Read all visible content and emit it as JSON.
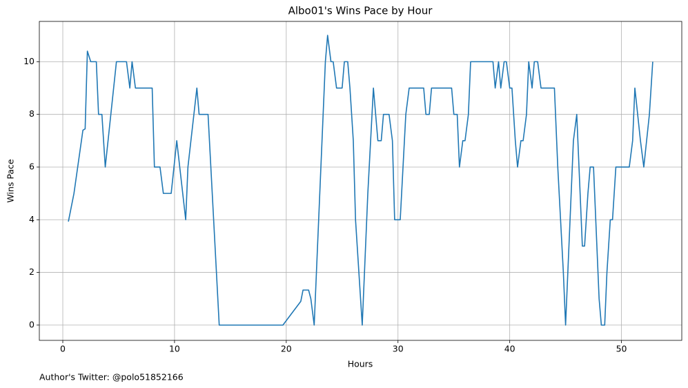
{
  "chart_data": {
    "type": "line",
    "title": "Albo01's Wins Pace by Hour",
    "x_label": "Hours",
    "y_label": "Wins Pace",
    "annotation": "Author's Twitter: @polo51852166",
    "color": "#1f77b4",
    "grid": true,
    "xlim": [
      -2.1,
      55.4
    ],
    "ylim": [
      -0.58,
      11.53
    ],
    "xticks": [
      0,
      10,
      20,
      30,
      40,
      50
    ],
    "yticks": [
      0,
      2,
      4,
      6,
      8,
      10
    ],
    "x": [
      0.5,
      1.0,
      1.8,
      2.0,
      2.2,
      2.5,
      3.0,
      3.2,
      3.5,
      3.8,
      4.8,
      5.7,
      6.0,
      6.2,
      6.5,
      8.0,
      8.2,
      8.7,
      9.0,
      9.7,
      10.2,
      11.0,
      11.2,
      12.0,
      12.2,
      13.0,
      14.0,
      19.7,
      21.3,
      21.5,
      22.0,
      22.2,
      22.5,
      23.0,
      23.2,
      23.5,
      23.7,
      24.0,
      24.2,
      24.5,
      25.0,
      25.2,
      25.5,
      25.7,
      26.0,
      26.2,
      26.8,
      27.0,
      27.3,
      27.8,
      28.0,
      28.2,
      28.5,
      28.7,
      29.2,
      29.5,
      29.7,
      30.2,
      30.7,
      31.0,
      32.3,
      32.5,
      32.8,
      33.0,
      34.8,
      35.0,
      35.3,
      35.5,
      35.8,
      36.0,
      36.3,
      36.5,
      38.5,
      38.7,
      39.0,
      39.2,
      39.5,
      39.7,
      40.0,
      40.2,
      40.5,
      40.7,
      41.0,
      41.2,
      41.5,
      41.7,
      42.0,
      42.2,
      42.5,
      42.8,
      44.0,
      44.3,
      44.8,
      45.0,
      45.5,
      45.7,
      46.0,
      46.2,
      46.5,
      46.7,
      47.0,
      47.2,
      47.5,
      47.7,
      48.0,
      48.2,
      48.5,
      48.7,
      49.0,
      49.2,
      49.5,
      50.7,
      51.0,
      51.2,
      51.7,
      52.0,
      52.5,
      52.8
    ],
    "values": [
      3.93,
      5,
      7.4,
      7.45,
      10.4,
      10,
      10,
      8,
      8,
      6,
      10,
      10,
      9,
      10,
      9,
      9,
      6,
      6,
      5,
      5,
      7,
      4,
      6,
      9,
      8,
      8,
      0,
      0,
      0.9,
      1.33,
      1.33,
      1,
      0,
      5,
      7,
      10,
      11,
      10,
      10,
      9,
      9,
      10,
      10,
      9,
      7,
      4,
      0,
      2,
      5,
      9,
      8,
      7,
      7,
      8,
      8,
      7,
      4,
      4,
      8,
      9,
      9,
      8,
      8,
      9,
      9,
      8,
      8,
      6,
      7,
      7,
      8,
      10,
      10,
      9,
      10,
      9,
      10,
      10,
      9,
      9,
      7,
      6,
      7,
      7,
      8,
      10,
      9,
      10,
      10,
      9,
      9,
      6,
      2,
      0,
      5,
      7,
      8,
      6,
      3,
      3,
      5,
      6,
      6,
      4,
      1,
      0,
      0,
      2,
      4,
      4,
      6,
      6,
      7,
      9,
      7,
      6,
      8,
      10
    ]
  }
}
